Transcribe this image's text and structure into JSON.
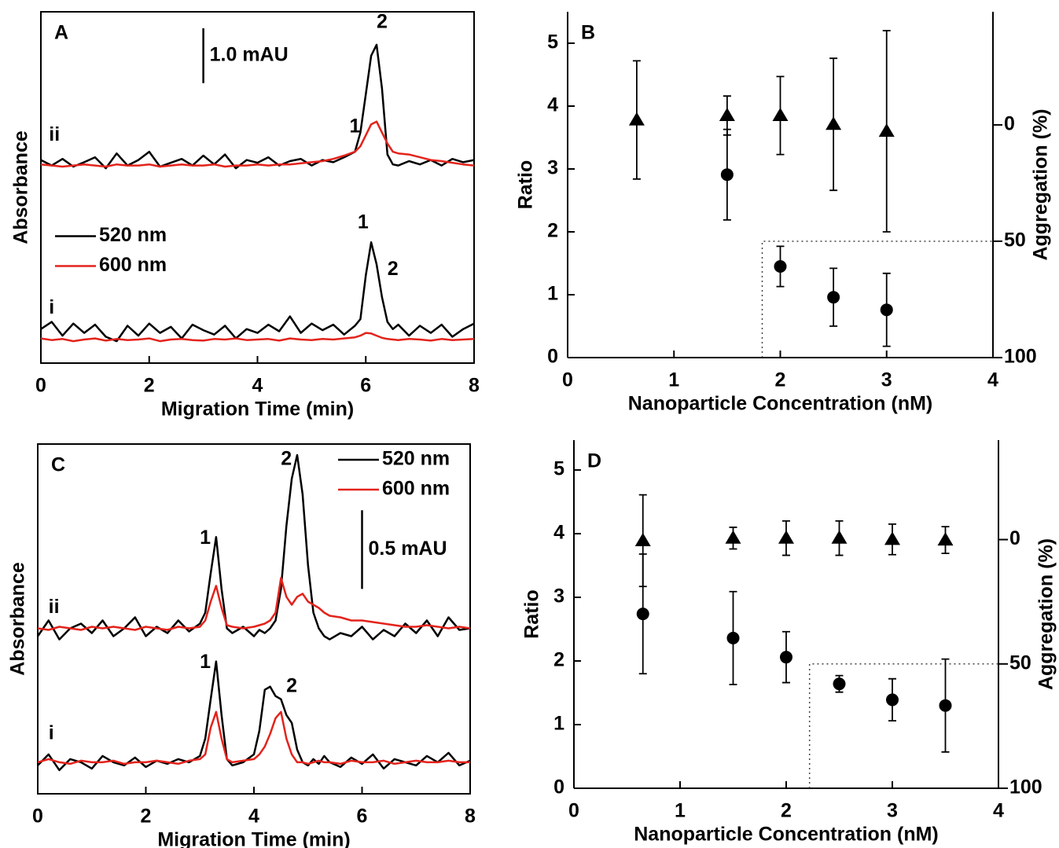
{
  "chart_data": [
    {
      "type": "line",
      "title": "A",
      "xlabel": "Migration Time (min)",
      "ylabel": "Absorbance",
      "xlim": [
        0,
        8
      ],
      "xticks": [
        0,
        2,
        4,
        6,
        8
      ],
      "ylim": [
        0,
        6.4
      ],
      "legend": "left",
      "scale_bar": {
        "value": 1.0,
        "label": "1.0 mAU",
        "x": 3.0,
        "y": 5.1
      },
      "annotations": [
        {
          "text": "2",
          "x": 6.3,
          "y": 6.2
        },
        {
          "text": "1",
          "x": 5.8,
          "y": 4.3
        },
        {
          "text": "ii",
          "x": 0.25,
          "y": 4.15
        },
        {
          "text": "1",
          "x": 5.95,
          "y": 2.55
        },
        {
          "text": "2",
          "x": 6.5,
          "y": 1.7
        },
        {
          "text": "i",
          "x": 0.2,
          "y": 1.0
        }
      ],
      "x": [
        0,
        0.2,
        0.4,
        0.6,
        0.8,
        1.0,
        1.2,
        1.4,
        1.6,
        1.8,
        2.0,
        2.2,
        2.4,
        2.6,
        2.8,
        3.0,
        3.2,
        3.4,
        3.6,
        3.8,
        4.0,
        4.2,
        4.4,
        4.6,
        4.8,
        5.0,
        5.2,
        5.4,
        5.6,
        5.8,
        5.9,
        6.0,
        6.1,
        6.2,
        6.3,
        6.4,
        6.5,
        6.6,
        6.8,
        7.0,
        7.2,
        7.4,
        7.6,
        7.8,
        8.0
      ],
      "series": [
        {
          "name": "520 nm",
          "color": "#000000",
          "values": [
            0.62,
            0.75,
            0.5,
            0.72,
            0.55,
            0.7,
            0.48,
            0.4,
            0.68,
            0.5,
            0.72,
            0.55,
            0.66,
            0.45,
            0.7,
            0.6,
            0.52,
            0.68,
            0.45,
            0.62,
            0.55,
            0.7,
            0.58,
            0.85,
            0.55,
            0.72,
            0.6,
            0.7,
            0.52,
            0.68,
            0.8,
            1.6,
            2.2,
            1.8,
            1.2,
            0.75,
            0.62,
            0.7,
            0.5,
            0.68,
            0.55,
            0.7,
            0.48,
            0.62,
            0.72
          ]
        },
        {
          "name": "600 nm",
          "color": "#e3231b",
          "values": [
            0.45,
            0.42,
            0.44,
            0.4,
            0.43,
            0.45,
            0.41,
            0.44,
            0.42,
            0.43,
            0.45,
            0.4,
            0.43,
            0.44,
            0.42,
            0.41,
            0.44,
            0.43,
            0.45,
            0.42,
            0.43,
            0.44,
            0.41,
            0.45,
            0.43,
            0.42,
            0.44,
            0.43,
            0.45,
            0.47,
            0.5,
            0.55,
            0.54,
            0.5,
            0.46,
            0.44,
            0.43,
            0.42,
            0.44,
            0.43,
            0.41,
            0.44,
            0.42,
            0.43,
            0.44
          ]
        },
        {
          "color": "#000000",
          "values": [
            3.7,
            3.6,
            3.72,
            3.58,
            3.66,
            3.75,
            3.55,
            3.82,
            3.6,
            3.7,
            3.85,
            3.58,
            3.65,
            3.72,
            3.6,
            3.78,
            3.62,
            3.8,
            3.55,
            3.7,
            3.65,
            3.75,
            3.6,
            3.68,
            3.72,
            3.6,
            3.7,
            3.66,
            3.75,
            3.85,
            4.2,
            4.9,
            5.6,
            5.8,
            5.0,
            3.8,
            3.62,
            3.6,
            3.68,
            3.62,
            3.7,
            3.6,
            3.72,
            3.66,
            3.7
          ]
        },
        {
          "color": "#e3231b",
          "values": [
            3.62,
            3.6,
            3.58,
            3.6,
            3.62,
            3.6,
            3.58,
            3.62,
            3.6,
            3.6,
            3.62,
            3.58,
            3.6,
            3.62,
            3.6,
            3.6,
            3.62,
            3.58,
            3.6,
            3.6,
            3.62,
            3.6,
            3.62,
            3.62,
            3.64,
            3.66,
            3.68,
            3.72,
            3.78,
            3.85,
            3.95,
            4.15,
            4.35,
            4.4,
            4.2,
            4.0,
            3.85,
            3.82,
            3.8,
            3.75,
            3.7,
            3.68,
            3.65,
            3.62,
            3.6
          ]
        }
      ]
    },
    {
      "type": "scatter",
      "title": "B",
      "xlabel": "Nanoparticle Concentration (nM)",
      "ylabel": "Ratio",
      "y2label": "Aggregation (%)",
      "xlim": [
        0,
        4
      ],
      "xticks": [
        0,
        1,
        2,
        3,
        4
      ],
      "ylim": [
        0,
        5.5
      ],
      "yticks": [
        0,
        1,
        2,
        3,
        4,
        5
      ],
      "y2lim": [
        100,
        -48.6
      ],
      "y2ticks": [
        0,
        50,
        100
      ],
      "threshold": {
        "x": 1.83,
        "y2": 50
      },
      "series": [
        {
          "marker": "triangle",
          "color": "#000000",
          "x": [
            0.65,
            1.5,
            2,
            2.5,
            3
          ],
          "values": [
            3.78,
            3.85,
            3.85,
            3.71,
            3.6
          ],
          "errors": [
            0.94,
            0.31,
            0.62,
            1.05,
            1.6
          ]
        },
        {
          "marker": "circle",
          "color": "#000000",
          "x": [
            1.5,
            2,
            2.5,
            3
          ],
          "values": [
            2.91,
            1.45,
            0.96,
            0.76
          ],
          "errors": [
            0.72,
            0.32,
            0.46,
            0.58
          ]
        }
      ]
    },
    {
      "type": "line",
      "title": "C",
      "xlabel": "Migration Time (min)",
      "ylabel": "Absorbance",
      "xlim": [
        0,
        8
      ],
      "xticks": [
        0,
        2,
        4,
        6,
        8
      ],
      "ylim": [
        0,
        2.22
      ],
      "legend": "upper right",
      "scale_bar": {
        "value": 0.5,
        "label": "0.5 mAU",
        "x": 6.0,
        "y": 1.3
      },
      "annotations": [
        {
          "text": "1",
          "x": 3.1,
          "y": 1.62
        },
        {
          "text": "2",
          "x": 4.6,
          "y": 2.12
        },
        {
          "text": "ii",
          "x": 0.3,
          "y": 1.18
        },
        {
          "text": "1",
          "x": 3.1,
          "y": 0.83
        },
        {
          "text": "2",
          "x": 4.7,
          "y": 0.68
        },
        {
          "text": "i",
          "x": 0.25,
          "y": 0.38
        }
      ],
      "x": [
        0,
        0.2,
        0.4,
        0.6,
        0.8,
        1.0,
        1.2,
        1.4,
        1.6,
        1.8,
        2.0,
        2.2,
        2.4,
        2.6,
        2.8,
        3.0,
        3.1,
        3.2,
        3.3,
        3.4,
        3.5,
        3.6,
        3.8,
        4.0,
        4.1,
        4.2,
        4.3,
        4.4,
        4.5,
        4.6,
        4.7,
        4.8,
        4.9,
        5.0,
        5.1,
        5.2,
        5.3,
        5.4,
        5.6,
        5.8,
        6.0,
        6.2,
        6.4,
        6.6,
        6.8,
        7.0,
        7.2,
        7.4,
        7.6,
        7.8,
        8.0
      ],
      "series": [
        {
          "name": "520 nm",
          "color": "#000000",
          "values": [
            0.18,
            0.25,
            0.15,
            0.22,
            0.2,
            0.16,
            0.24,
            0.2,
            0.18,
            0.23,
            0.17,
            0.21,
            0.19,
            0.22,
            0.2,
            0.24,
            0.35,
            0.6,
            0.84,
            0.5,
            0.22,
            0.18,
            0.2,
            0.25,
            0.4,
            0.66,
            0.68,
            0.62,
            0.6,
            0.5,
            0.45,
            0.28,
            0.2,
            0.18,
            0.22,
            0.19,
            0.24,
            0.2,
            0.17,
            0.23,
            0.19,
            0.25,
            0.16,
            0.22,
            0.2,
            0.18,
            0.24,
            0.2,
            0.26,
            0.18,
            0.21
          ]
        },
        {
          "name": "600 nm",
          "color": "#e3231b",
          "values": [
            0.2,
            0.22,
            0.2,
            0.19,
            0.21,
            0.2,
            0.2,
            0.21,
            0.19,
            0.2,
            0.2,
            0.21,
            0.2,
            0.19,
            0.21,
            0.22,
            0.25,
            0.42,
            0.52,
            0.35,
            0.22,
            0.2,
            0.21,
            0.22,
            0.25,
            0.3,
            0.38,
            0.48,
            0.52,
            0.35,
            0.25,
            0.2,
            0.2,
            0.19,
            0.2,
            0.21,
            0.2,
            0.2,
            0.19,
            0.21,
            0.2,
            0.2,
            0.21,
            0.19,
            0.2,
            0.21,
            0.2,
            0.2,
            0.21,
            0.2,
            0.2
          ]
        },
        {
          "color": "#000000",
          "values": [
            1.0,
            1.1,
            0.98,
            1.05,
            1.08,
            1.02,
            1.1,
            1.0,
            1.05,
            1.12,
            1.0,
            1.06,
            1.02,
            1.1,
            1.03,
            1.08,
            1.15,
            1.4,
            1.63,
            1.3,
            1.05,
            1.02,
            1.06,
            1.0,
            1.04,
            1.02,
            1.05,
            1.1,
            1.3,
            1.7,
            2.0,
            2.15,
            1.9,
            1.45,
            1.15,
            1.05,
            1.0,
            0.98,
            1.02,
            1.0,
            1.06,
            0.98,
            1.04,
            1.0,
            1.08,
            1.02,
            1.1,
            1.0,
            1.12,
            1.04,
            1.05
          ]
        },
        {
          "color": "#e3231b",
          "values": [
            1.05,
            1.04,
            1.06,
            1.05,
            1.04,
            1.06,
            1.05,
            1.06,
            1.05,
            1.04,
            1.06,
            1.05,
            1.04,
            1.06,
            1.05,
            1.06,
            1.1,
            1.22,
            1.32,
            1.18,
            1.07,
            1.06,
            1.05,
            1.06,
            1.07,
            1.08,
            1.1,
            1.15,
            1.37,
            1.25,
            1.2,
            1.25,
            1.27,
            1.22,
            1.2,
            1.18,
            1.15,
            1.13,
            1.12,
            1.1,
            1.1,
            1.09,
            1.08,
            1.07,
            1.06,
            1.06,
            1.07,
            1.06,
            1.05,
            1.06,
            1.05
          ]
        }
      ]
    },
    {
      "type": "scatter",
      "title": "D",
      "xlabel": "Nanoparticle Concentration (nM)",
      "ylabel": "Ratio",
      "y2label": "Aggregation (%)",
      "xlim": [
        0,
        4
      ],
      "xticks": [
        0,
        1,
        2,
        3,
        4
      ],
      "ylim": [
        0,
        5.47
      ],
      "yticks": [
        0,
        1,
        2,
        3,
        4,
        5
      ],
      "y2lim": [
        100,
        -40
      ],
      "y2ticks": [
        0,
        50,
        100
      ],
      "threshold": {
        "x": 2.22,
        "y2": 50
      },
      "series": [
        {
          "marker": "triangle",
          "color": "#000000",
          "x": [
            0.65,
            1.5,
            2,
            2.5,
            3,
            3.5
          ],
          "values": [
            3.89,
            3.93,
            3.93,
            3.93,
            3.91,
            3.9
          ],
          "errors": [
            0.72,
            0.17,
            0.27,
            0.27,
            0.24,
            0.21
          ]
        },
        {
          "marker": "circle",
          "color": "#000000",
          "x": [
            0.65,
            1.5,
            2,
            2.5,
            3,
            3.5
          ],
          "values": [
            2.74,
            2.36,
            2.06,
            1.64,
            1.39,
            1.3
          ],
          "errors": [
            0.94,
            0.73,
            0.4,
            0.13,
            0.33,
            0.73
          ]
        }
      ]
    }
  ]
}
